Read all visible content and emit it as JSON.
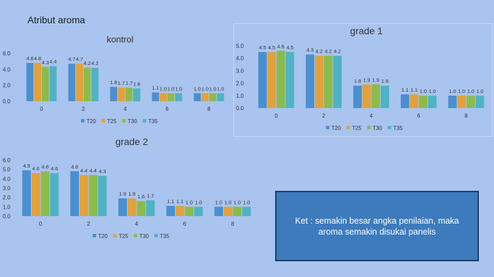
{
  "slide": {
    "title": "Atribut aroma"
  },
  "note": {
    "text": "Ket : semakin besar angka penilaian, maka aroma semakin disukai panelis"
  },
  "colors": {
    "T20": "#4a8fd0",
    "T25": "#e2a13a",
    "T30": "#8cbb4c",
    "T35": "#4eb3c4"
  },
  "chart_data": [
    {
      "type": "bar",
      "title": "kontrol",
      "categories": [
        "0",
        "2",
        "4",
        "6",
        "8"
      ],
      "yticks": [
        "0.0",
        "2.0",
        "4.0",
        "6.0"
      ],
      "ylim": [
        0,
        6
      ],
      "legend": "bottom",
      "series": [
        {
          "name": "T20",
          "values": [
            4.8,
            4.7,
            1.8,
            1.1,
            1.0
          ],
          "labels": [
            "4.8",
            "4.7",
            "1.8",
            "1.1",
            "1.0"
          ]
        },
        {
          "name": "T25",
          "values": [
            4.8,
            4.7,
            1.7,
            1.0,
            1.0
          ],
          "labels": [
            "4.8",
            "4.7",
            "1.7",
            "1.0",
            "1.0"
          ]
        },
        {
          "name": "T30",
          "values": [
            4.3,
            4.2,
            1.7,
            1.0,
            1.0
          ],
          "labels": [
            "4.3",
            "4.2",
            "1.7",
            "1.0",
            "1.0"
          ]
        },
        {
          "name": "T35",
          "values": [
            4.4,
            4.2,
            1.6,
            1.0,
            1.0
          ],
          "labels": [
            "4.4",
            "4.2",
            "1.6",
            "1.0",
            "1.0"
          ]
        }
      ]
    },
    {
      "type": "bar",
      "title": "grade 1",
      "categories": [
        "0",
        "2",
        "4",
        "6",
        "8"
      ],
      "yticks": [
        "0.0",
        "1.0",
        "2.0",
        "3.0",
        "4.0",
        "5.0"
      ],
      "ylim": [
        0,
        5
      ],
      "legend": "bottom",
      "series": [
        {
          "name": "T20",
          "values": [
            4.5,
            4.3,
            1.8,
            1.1,
            1.0
          ],
          "labels": [
            "4.5",
            "4.3",
            "1.8",
            "1.1",
            "1.0"
          ]
        },
        {
          "name": "T25",
          "values": [
            4.5,
            4.2,
            1.9,
            1.1,
            1.0
          ],
          "labels": [
            "4.5",
            "4.2",
            "1.9",
            "1.1",
            "1.0"
          ]
        },
        {
          "name": "T30",
          "values": [
            4.6,
            4.2,
            1.9,
            1.0,
            1.0
          ],
          "labels": [
            "4.6",
            "4.2",
            "1.9",
            "1.0",
            "1.0"
          ]
        },
        {
          "name": "T35",
          "values": [
            4.5,
            4.2,
            1.8,
            1.0,
            1.0
          ],
          "labels": [
            "4.5",
            "4.2",
            "1.8",
            "1.0",
            "1.0"
          ]
        }
      ]
    },
    {
      "type": "bar",
      "title": "grade 2",
      "categories": [
        "0",
        "2",
        "4",
        "6",
        "8"
      ],
      "yticks": [
        "0.0",
        "1.0",
        "2.0",
        "3.0",
        "4.0",
        "5.0",
        "6.0"
      ],
      "ylim": [
        0,
        6
      ],
      "legend": "bottom",
      "series": [
        {
          "name": "T20",
          "values": [
            4.9,
            4.8,
            1.9,
            1.1,
            1.0
          ],
          "labels": [
            "4.9",
            "4.8",
            "1.9",
            "1.1",
            "1.0"
          ]
        },
        {
          "name": "T25",
          "values": [
            4.6,
            4.4,
            1.9,
            1.1,
            1.0
          ],
          "labels": [
            "4.6",
            "4.4",
            "1.9",
            "1.1",
            "1.0"
          ]
        },
        {
          "name": "T30",
          "values": [
            4.8,
            4.4,
            1.6,
            1.0,
            1.0
          ],
          "labels": [
            "4.8",
            "4.4",
            "1.6",
            "1.0",
            "1.0"
          ]
        },
        {
          "name": "T35",
          "values": [
            4.6,
            4.3,
            1.7,
            1.0,
            1.0
          ],
          "labels": [
            "4.6",
            "4.3",
            "1.7",
            "1.0",
            "1.0"
          ]
        }
      ]
    }
  ]
}
